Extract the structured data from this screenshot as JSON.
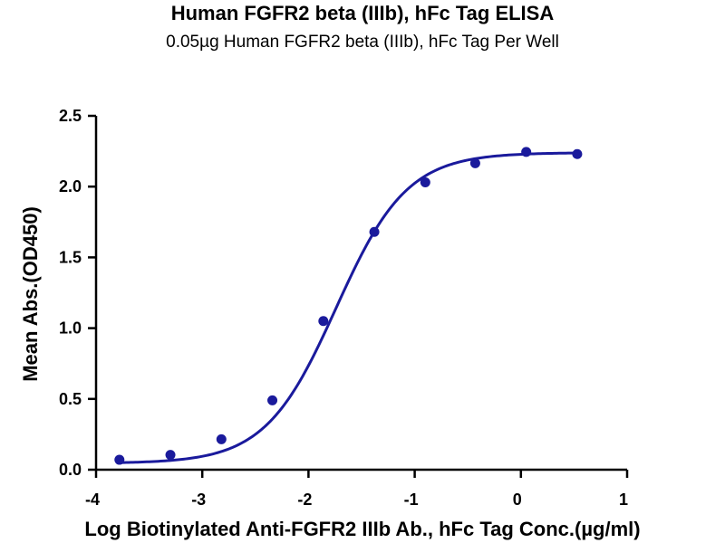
{
  "chart_data": {
    "type": "scatter",
    "title": "Human FGFR2 beta (IIIb), hFc Tag ELISA",
    "subtitle": "0.05µg Human FGFR2 beta (IIIb), hFc Tag Per Well",
    "xlabel": "Log Biotinylated Anti-FGFR2 IIIb Ab., hFc Tag Conc.(µg/ml)",
    "ylabel": "Mean Abs.(OD450)",
    "xlim": [
      -4,
      1
    ],
    "ylim": [
      0,
      2.5
    ],
    "xticks": [
      "-4",
      "-3",
      "-2",
      "-1",
      "0",
      "1"
    ],
    "yticks": [
      "0.0",
      "0.5",
      "1.0",
      "1.5",
      "2.0",
      "2.5"
    ],
    "grid": false,
    "legend": "none",
    "color": "#1a1a9c",
    "series": [
      {
        "x": [
          -3.78,
          -3.3,
          -2.82,
          -2.34,
          -1.86,
          -1.38,
          -0.9,
          -0.43,
          0.05,
          0.53
        ],
        "y": [
          0.07,
          0.105,
          0.215,
          0.49,
          1.05,
          1.68,
          2.03,
          2.165,
          2.245,
          2.23
        ],
        "fit": "4PL sigmoidal curve"
      }
    ]
  }
}
